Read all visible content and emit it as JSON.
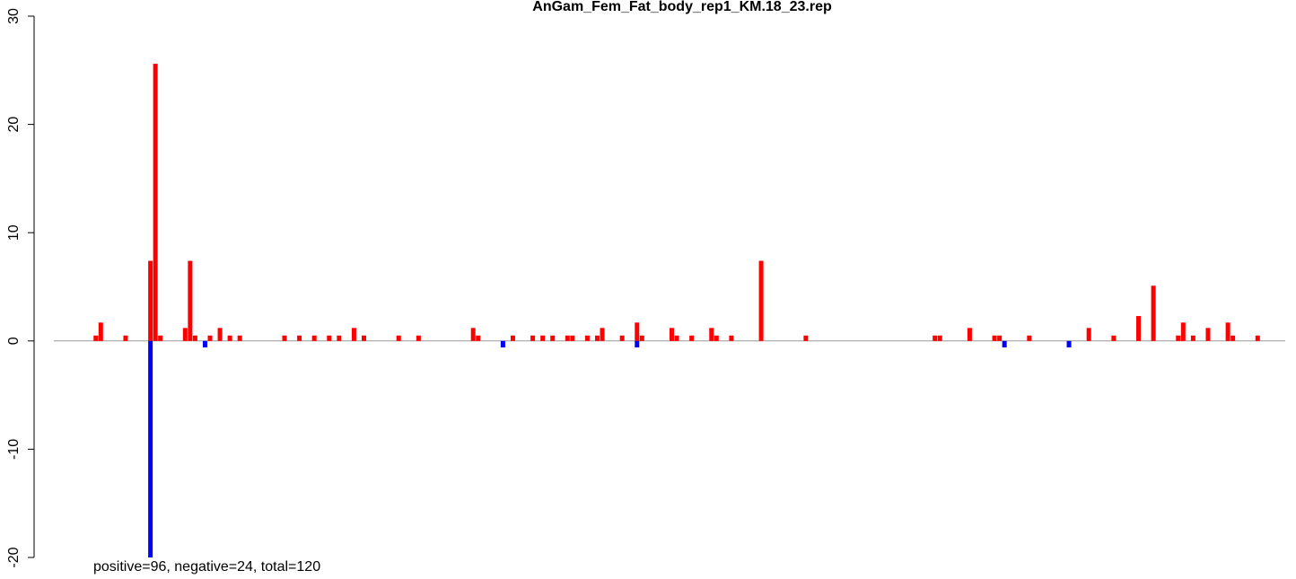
{
  "chart_data": {
    "type": "bar",
    "title": "AnGam_Fem_Fat_body_rep1_KM.18_23.rep",
    "annotation": "positive=96, negative=24, total=120",
    "xlim": [
      0,
      248
    ],
    "ylim": [
      -20,
      30
    ],
    "yticks": [
      -20,
      -10,
      0,
      10,
      20,
      30
    ],
    "series": [
      {
        "color": "#ff0000",
        "x": [
          8,
          9,
          14,
          19,
          20,
          21,
          26,
          27,
          28,
          31,
          33,
          35,
          37,
          46,
          49,
          52,
          55,
          57,
          60,
          62,
          69,
          73,
          84,
          85,
          92,
          96,
          98,
          100,
          103,
          104,
          107,
          109,
          110,
          114,
          117,
          118,
          124,
          125,
          128,
          132,
          133,
          136,
          142,
          151,
          177,
          178,
          184,
          189,
          190,
          196,
          208,
          213,
          218,
          221,
          226,
          227,
          229,
          232,
          236,
          237,
          242
        ],
        "values": [
          0.5,
          1.7,
          0.5,
          7.4,
          25.6,
          0.5,
          1.2,
          7.4,
          0.5,
          0.5,
          1.2,
          0.5,
          0.5,
          0.5,
          0.5,
          0.5,
          0.5,
          0.5,
          1.2,
          0.5,
          0.5,
          0.5,
          1.2,
          0.5,
          0.5,
          0.5,
          0.5,
          0.5,
          0.5,
          0.5,
          0.5,
          0.5,
          1.2,
          0.5,
          1.7,
          0.5,
          1.2,
          0.5,
          0.5,
          1.2,
          0.5,
          0.5,
          7.4,
          0.5,
          0.5,
          0.5,
          1.2,
          0.5,
          0.5,
          0.5,
          1.2,
          0.5,
          2.3,
          5.1,
          0.5,
          1.7,
          0.5,
          1.2,
          1.7,
          0.5,
          0.5
        ]
      },
      {
        "color": "#0000ff",
        "x": [
          19,
          30,
          90,
          117,
          191,
          204
        ],
        "values": [
          -20,
          -0.6,
          -0.6,
          -0.6,
          -0.6,
          -0.6
        ]
      }
    ]
  }
}
